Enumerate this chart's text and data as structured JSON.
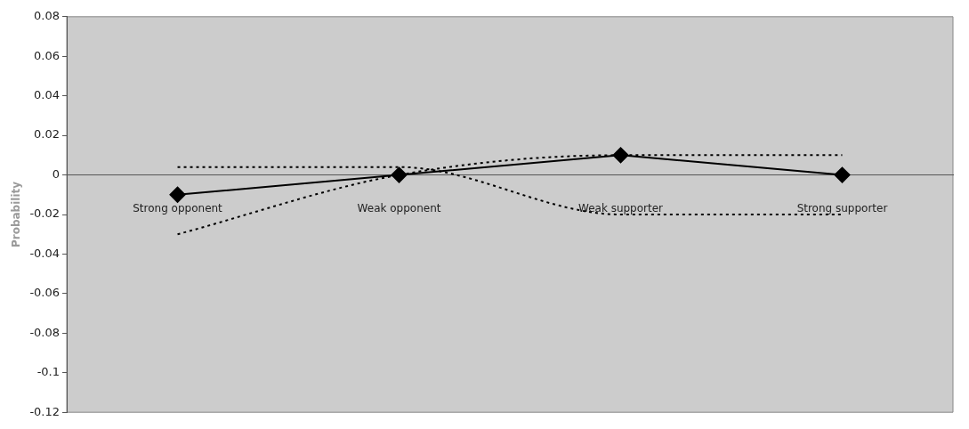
{
  "chart_data": {
    "type": "line",
    "ylabel": "Probability",
    "categories": [
      "Strong opponent",
      "Weak opponent",
      "Weak supporter",
      "Strong supporter"
    ],
    "series": [
      {
        "color": "#000000",
        "values": [
          -0.01,
          0,
          0.01,
          0
        ],
        "marker": "diamond",
        "line_style": "solid"
      },
      {
        "color": "#000000",
        "values": [
          -0.03,
          0,
          0.01,
          0.01
        ],
        "marker": "none",
        "line_style": "dotted"
      },
      {
        "color": "#000000",
        "values": [
          0.004,
          0.004,
          -0.02,
          -0.02
        ],
        "marker": "none",
        "line_style": "dotted"
      }
    ],
    "ylim": [
      -0.12,
      0.08
    ],
    "yticks": [
      -0.12,
      -0.1,
      -0.08,
      -0.06,
      -0.04,
      -0.02,
      0,
      0.02,
      0.04,
      0.06,
      0.08
    ],
    "grid": false,
    "legend": false
  }
}
